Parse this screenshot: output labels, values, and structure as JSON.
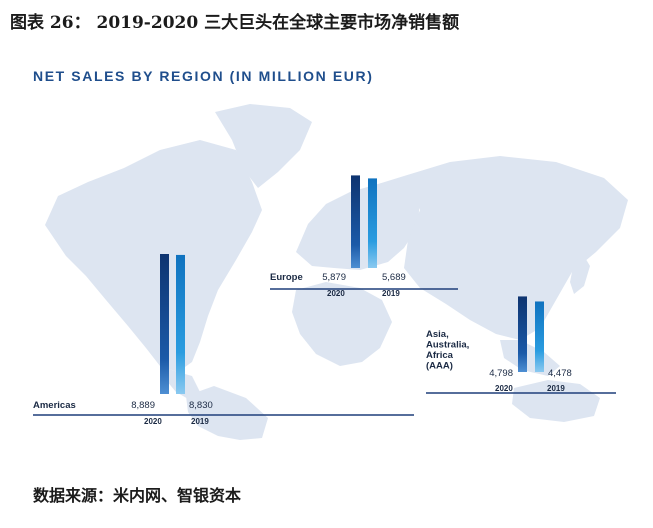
{
  "figure_title": "图表 26： 2019-2020 三大巨头在全球主要市场净销售额",
  "source": "数据来源：米内网、智银资本",
  "colors": {
    "bar2020": "#123d7a",
    "bar2019": "#1c8fd6",
    "baseline": "#1f3f7a",
    "map": "#dde5f1",
    "title": "#1f4e8c"
  },
  "chart_data": {
    "type": "bar",
    "title": "NET SALES BY REGION (IN MILLION EUR)",
    "series_years": [
      "2020",
      "2019"
    ],
    "regions": [
      {
        "name": "Americas",
        "values": [
          8889,
          8830
        ],
        "value_labels": [
          "8,889",
          "8,830"
        ],
        "year_labels": [
          "2020",
          "2019"
        ]
      },
      {
        "name": "Europe",
        "values": [
          5879,
          5689
        ],
        "value_labels": [
          "5,879",
          "5,689"
        ],
        "year_labels": [
          "2020",
          "2019"
        ]
      },
      {
        "name": "Asia,\nAustralia,\nAfrica\n(AAA)",
        "values": [
          4798,
          4478
        ],
        "value_labels": [
          "4,798",
          "4,478"
        ],
        "year_labels": [
          "2020",
          "2019"
        ]
      }
    ]
  }
}
